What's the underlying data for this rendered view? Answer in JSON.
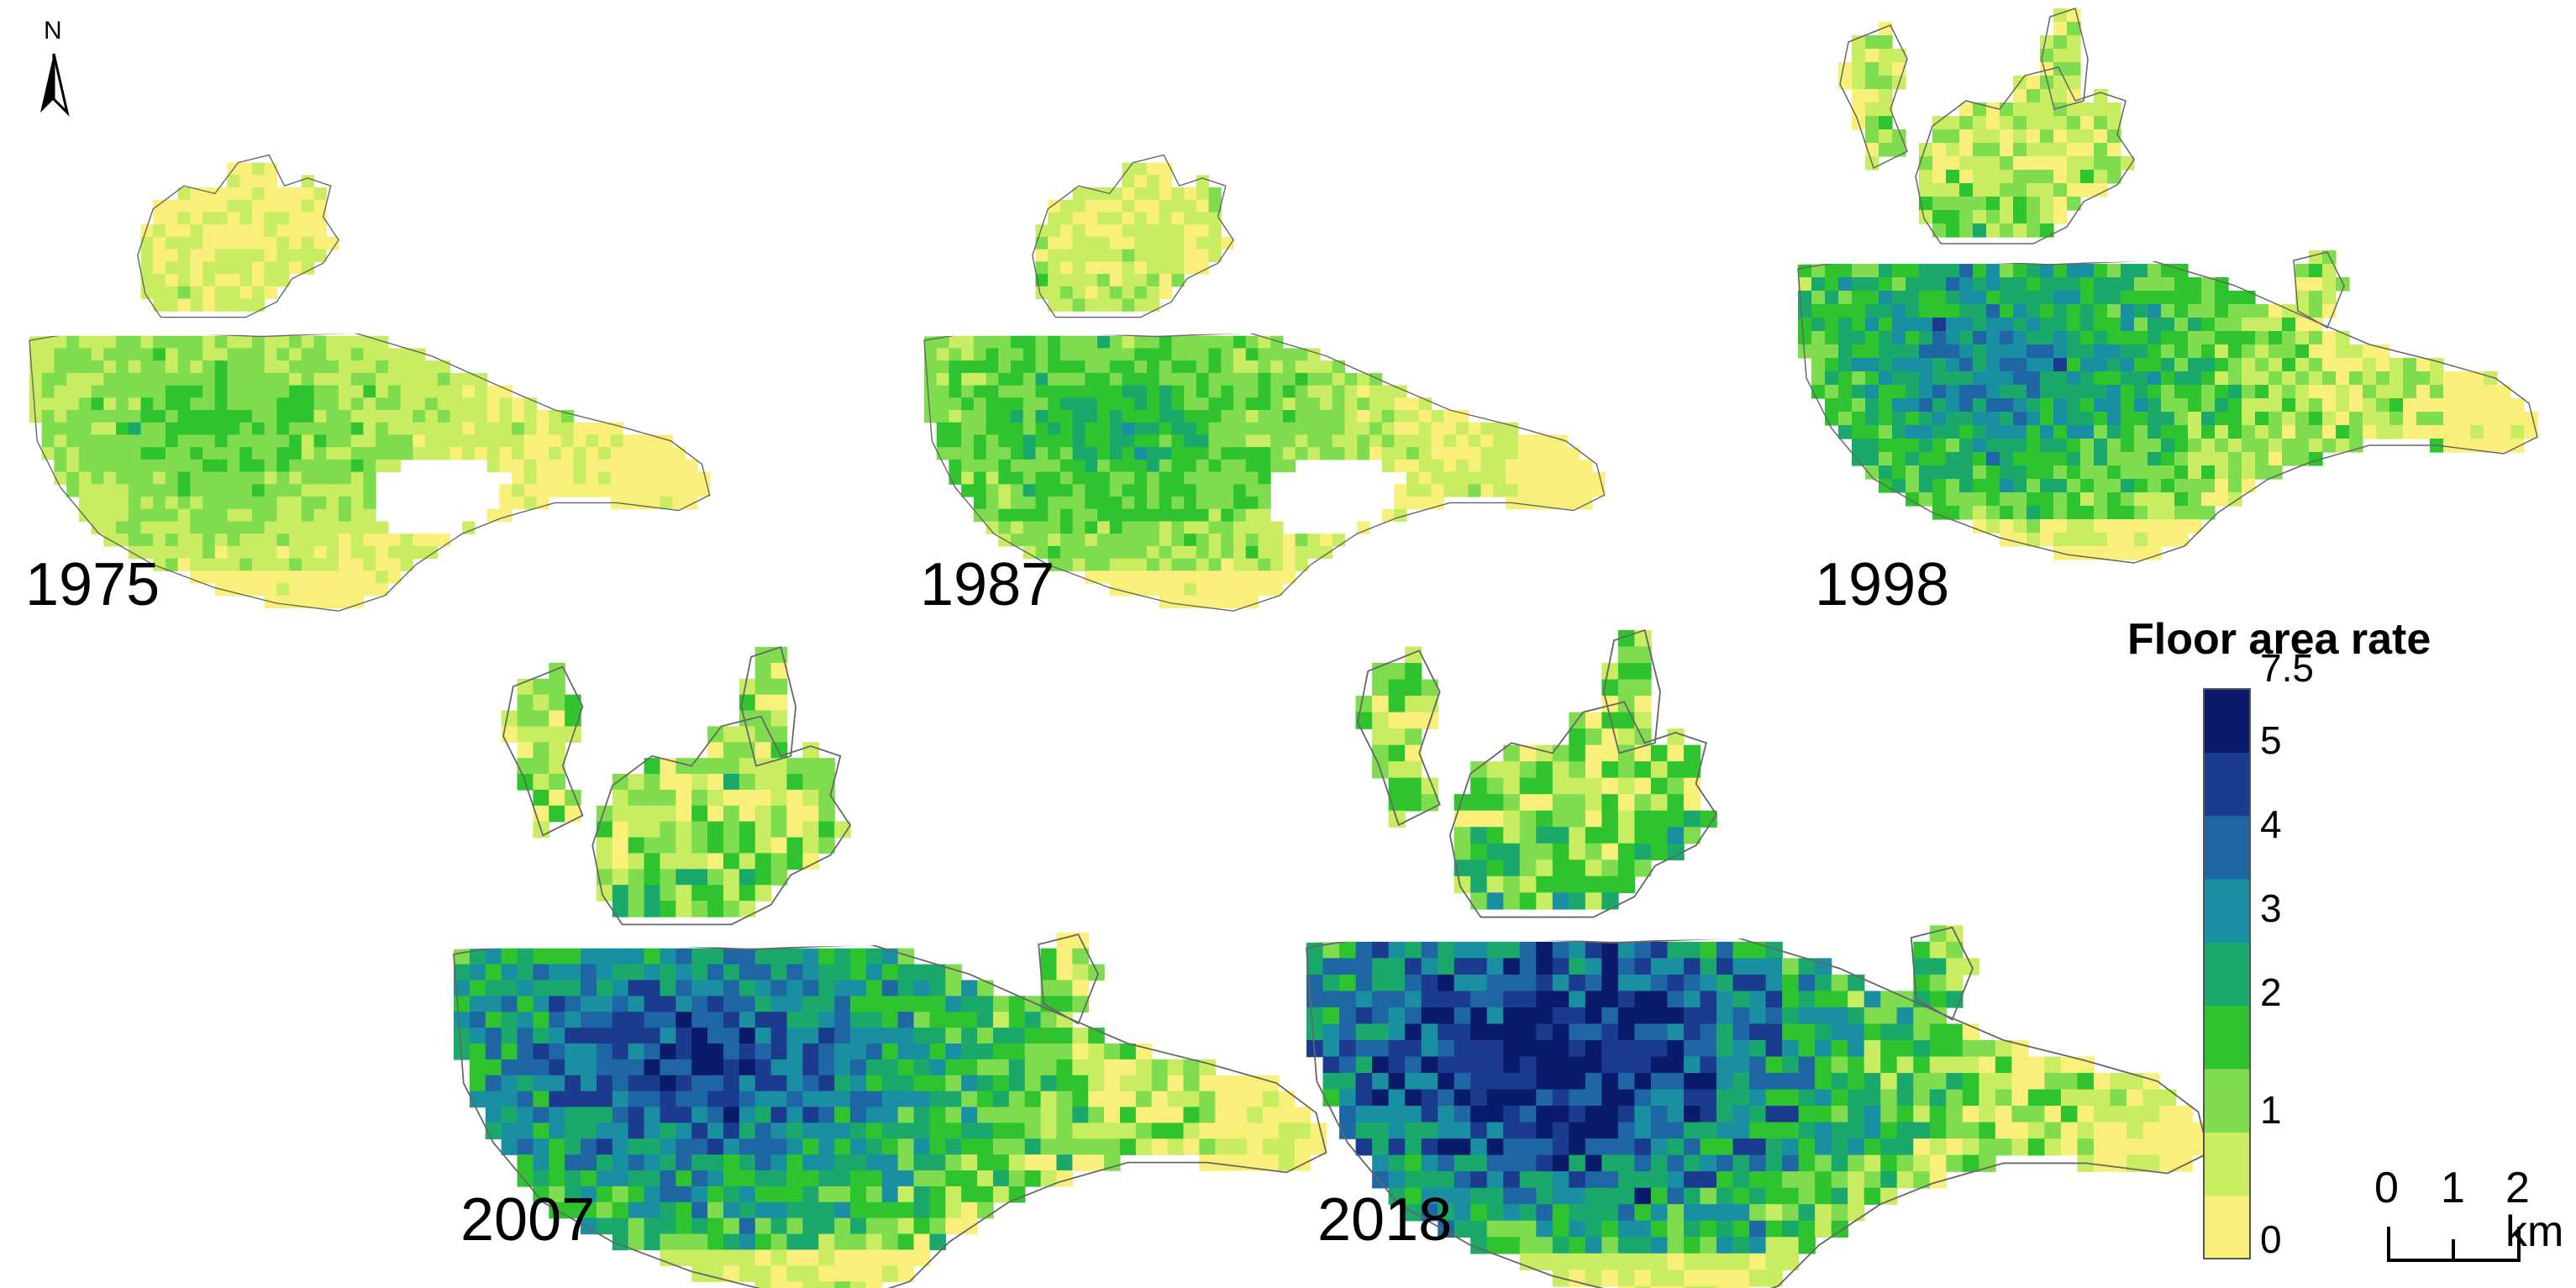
{
  "maps": [
    {
      "year": "1975",
      "intensity": 0.32,
      "has_lake": true,
      "outliers": false,
      "south_shift": 0.0
    },
    {
      "year": "1987",
      "intensity": 0.42,
      "has_lake": true,
      "outliers": false,
      "south_shift": 0.0
    },
    {
      "year": "1998",
      "intensity": 0.6,
      "has_lake": false,
      "outliers": true,
      "south_shift": 0.15
    },
    {
      "year": "2007",
      "intensity": 0.78,
      "has_lake": false,
      "outliers": true,
      "south_shift": 0.3
    },
    {
      "year": "2018",
      "intensity": 0.92,
      "has_lake": false,
      "outliers": true,
      "south_shift": 0.4
    }
  ],
  "legend": {
    "title": "Floor area rate",
    "ticks": [
      "7.5",
      "5",
      "4",
      "3",
      "2",
      "1",
      "0"
    ],
    "colors": [
      "#f8f07a",
      "#c8ec62",
      "#7fdc4f",
      "#2fc42f",
      "#1aa96b",
      "#1b8fa2",
      "#1f67a4",
      "#1b3b8e",
      "#0a1b6b"
    ]
  },
  "north_arrow": {
    "letter": "N"
  },
  "scale_bar": {
    "labels": [
      "0",
      "1",
      "2 km"
    ]
  }
}
